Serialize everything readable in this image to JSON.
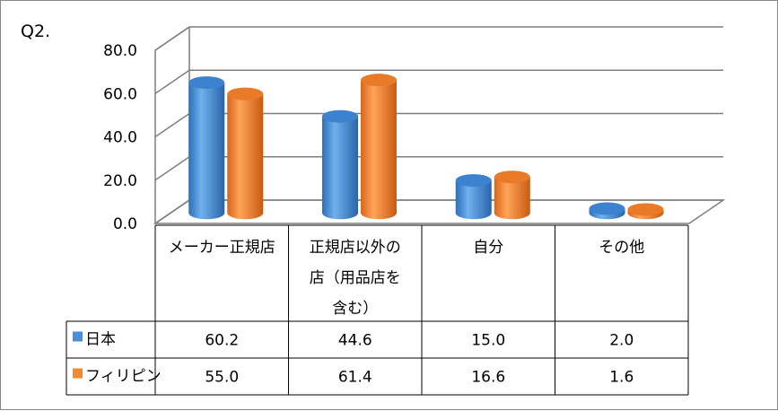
{
  "chart_data": {
    "type": "bar",
    "title": "Q2.",
    "categories": [
      [
        "メーカー正規店"
      ],
      [
        "正規店以外の",
        "店（用品店を",
        "含む）"
      ],
      [
        "自分"
      ],
      [
        "その他"
      ]
    ],
    "series": [
      {
        "name": "日本",
        "values": [
          60.2,
          44.6,
          15.0,
          2.0
        ],
        "labels": [
          "60.2",
          "44.6",
          "15.0",
          "2.0"
        ],
        "color": "#4a90d9"
      },
      {
        "name": "フィリピン",
        "values": [
          55.0,
          61.4,
          16.6,
          1.6
        ],
        "labels": [
          "55.0",
          "61.4",
          "16.6",
          "1.6"
        ],
        "color": "#f28a2e"
      }
    ],
    "yticks": [
      "0.0",
      "20.0",
      "40.0",
      "60.0",
      "80.0"
    ],
    "ylim": [
      0,
      80
    ],
    "grid": true,
    "legend": "data-table-left"
  }
}
